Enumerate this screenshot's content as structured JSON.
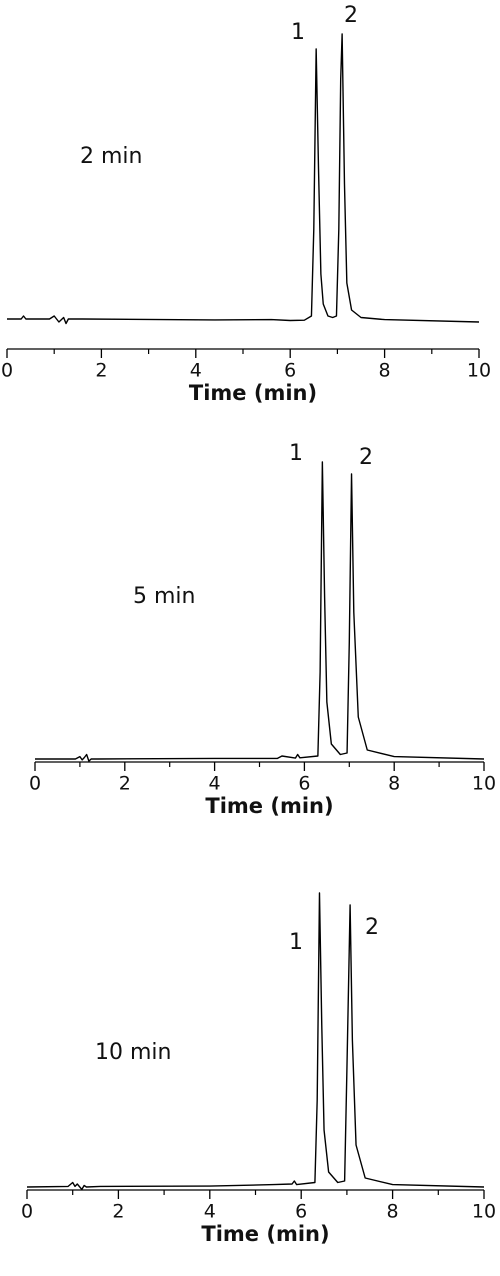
{
  "chart_data": [
    {
      "type": "line",
      "xlabel": "Time (min)",
      "label": "2 min",
      "peak_labels": [
        "1",
        "2"
      ],
      "xlim": [
        0,
        10
      ],
      "xticks": [
        0,
        2,
        4,
        6,
        8,
        10
      ],
      "minor_xticks": [
        1,
        3,
        5,
        7,
        9
      ],
      "ylim": [
        0,
        110
      ],
      "series": [
        {
          "color": "#000000",
          "x": [
            0,
            0.3,
            0.35,
            0.4,
            0.9,
            1.0,
            1.1,
            1.2,
            1.25,
            1.3,
            1.6,
            4.4,
            5.6,
            6.0,
            6.3,
            6.45,
            6.5,
            6.55,
            6.6,
            6.65,
            6.7,
            6.8,
            6.9,
            6.98,
            7.03,
            7.07,
            7.1,
            7.15,
            7.2,
            7.3,
            7.5,
            8,
            10
          ],
          "values": [
            10,
            10,
            11,
            10,
            10,
            11,
            9,
            10.5,
            8.5,
            10,
            10,
            9.7,
            9.8,
            9.5,
            9.6,
            11,
            40,
            100,
            60,
            25,
            15,
            11,
            10.5,
            11,
            40,
            90,
            105,
            55,
            22,
            13,
            10.5,
            9.8,
            9
          ]
        }
      ]
    },
    {
      "type": "line",
      "xlabel": "Time (min)",
      "label": "5 min",
      "peak_labels": [
        "1",
        "2"
      ],
      "xlim": [
        0,
        10
      ],
      "xticks": [
        0,
        2,
        4,
        6,
        8,
        10
      ],
      "minor_xticks": [
        1,
        3,
        5,
        7,
        9
      ],
      "ylim": [
        0,
        110
      ],
      "series": [
        {
          "color": "#000000",
          "x": [
            0,
            0.9,
            1.0,
            1.05,
            1.1,
            1.15,
            1.2,
            1.25,
            1.4,
            4.0,
            5.4,
            5.5,
            5.8,
            5.85,
            5.9,
            6.3,
            6.35,
            6.4,
            6.45,
            6.5,
            6.6,
            6.8,
            6.95,
            7.0,
            7.05,
            7.1,
            7.2,
            7.4,
            8,
            10
          ],
          "values": [
            1,
            1,
            1.8,
            0.7,
            1.5,
            2.5,
            0.3,
            1,
            1,
            1.2,
            1.2,
            2,
            1.3,
            2.5,
            1.4,
            2,
            30,
            100,
            55,
            20,
            6,
            2.5,
            3,
            40,
            96,
            50,
            15,
            4,
            1.8,
            1
          ]
        }
      ]
    },
    {
      "type": "line",
      "xlabel": "Time (min)",
      "label": "10 min",
      "peak_labels": [
        "1",
        "2"
      ],
      "xlim": [
        0,
        10
      ],
      "xticks": [
        0,
        2,
        4,
        6,
        8,
        10
      ],
      "minor_xticks": [
        1,
        3,
        5,
        7,
        9
      ],
      "ylim": [
        0,
        110
      ],
      "series": [
        {
          "color": "#000000",
          "x": [
            0,
            0.9,
            1.0,
            1.05,
            1.1,
            1.2,
            1.25,
            1.3,
            1.6,
            4.0,
            5.4,
            5.8,
            5.85,
            5.9,
            6.3,
            6.35,
            6.4,
            6.45,
            6.5,
            6.6,
            6.8,
            6.95,
            7.0,
            7.07,
            7.12,
            7.2,
            7.4,
            8,
            10
          ],
          "values": [
            1,
            1.2,
            2.5,
            1.2,
            2,
            0.2,
            1.5,
            1,
            1.2,
            1.3,
            1.8,
            2,
            3,
            1.8,
            2.5,
            30,
            99,
            55,
            20,
            6,
            2.5,
            3,
            40,
            95,
            50,
            15,
            4,
            1.8,
            1
          ]
        }
      ]
    }
  ]
}
